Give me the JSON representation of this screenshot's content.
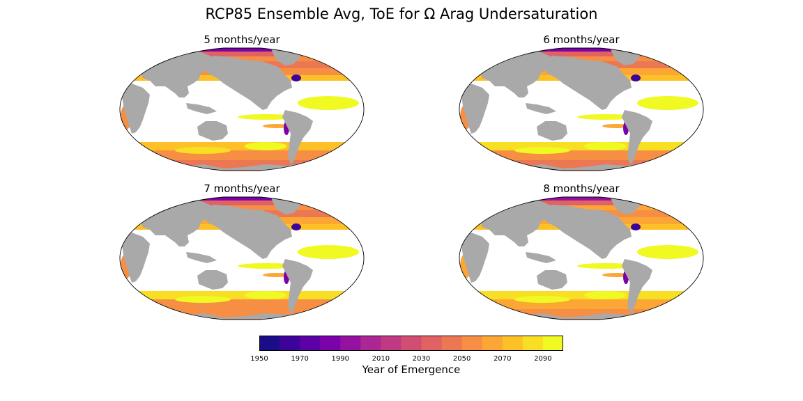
{
  "title": "RCP85 Ensemble Avg, ToE for Ω Arag Undersaturation",
  "chart_data": {
    "type": "heatmap",
    "panels": [
      {
        "title": "5 months/year"
      },
      {
        "title": "6 months/year"
      },
      {
        "title": "7 months/year"
      },
      {
        "title": "8 months/year"
      }
    ],
    "colorbar": {
      "label": "Year of Emergence",
      "range": [
        1950,
        2100
      ],
      "ticks": [
        "1950",
        "1970",
        "1990",
        "2010",
        "2030",
        "2050",
        "2070",
        "2090"
      ],
      "bin_width": 10,
      "colors": [
        "#1b0c87",
        "#3d049b",
        "#5c01a6",
        "#7a02a8",
        "#9512a1",
        "#ac2694",
        "#c03a83",
        "#d14e72",
        "#e06262",
        "#ec7853",
        "#f68f44",
        "#fca636",
        "#fdc127",
        "#f8df24",
        "#f0f921"
      ]
    },
    "colors": {
      "land": "#a9a9a9",
      "ocean_empty": "#ffffff",
      "outline": "#000000"
    }
  }
}
